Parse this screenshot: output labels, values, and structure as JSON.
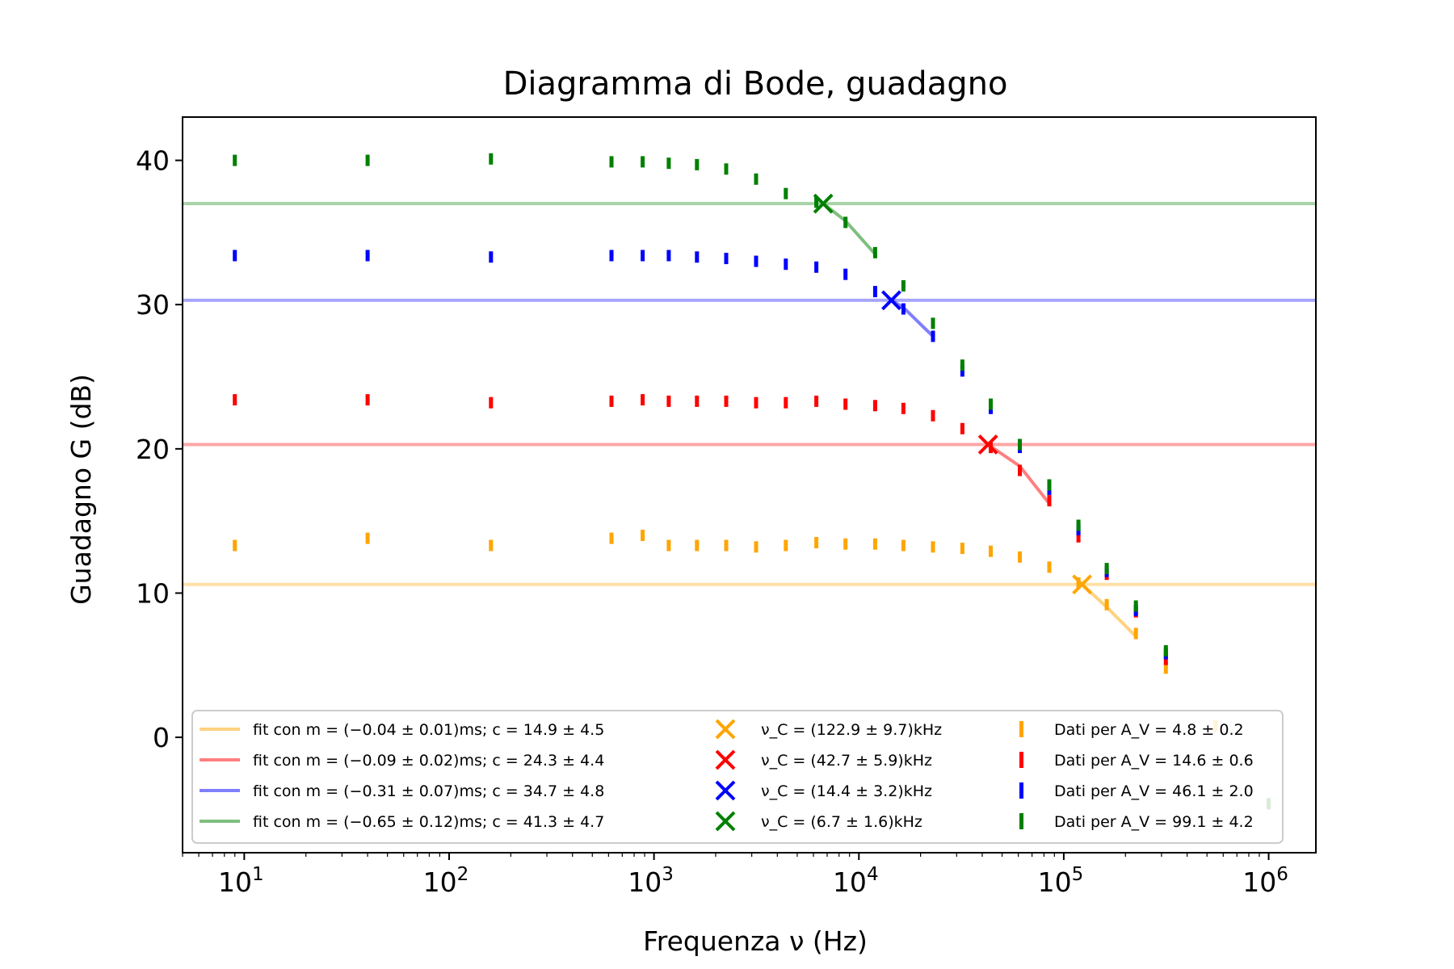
{
  "chart_data": {
    "type": "scatter",
    "title": "Diagramma di Bode, guadagno",
    "xlabel": "Frequenza ν (Hz)",
    "ylabel": "Guadagno G (dB)",
    "x_scale": "log",
    "xlim": [
      5,
      1700000
    ],
    "ylim": [
      -8,
      43
    ],
    "x_ticks": [
      {
        "value": 10,
        "base": "10",
        "exp": "1"
      },
      {
        "value": 100,
        "base": "10",
        "exp": "2"
      },
      {
        "value": 1000,
        "base": "10",
        "exp": "3"
      },
      {
        "value": 10000,
        "base": "10",
        "exp": "4"
      },
      {
        "value": 100000,
        "base": "10",
        "exp": "5"
      },
      {
        "value": 1000000,
        "base": "10",
        "exp": "6"
      }
    ],
    "y_ticks": [
      {
        "value": 0,
        "label": "0"
      },
      {
        "value": 10,
        "label": "10"
      },
      {
        "value": 20,
        "label": "20"
      },
      {
        "value": 30,
        "label": "30"
      },
      {
        "value": 40,
        "label": "40"
      }
    ],
    "grid": false,
    "legend_position": "bottom",
    "series": [
      {
        "name": "Dati per A_V = 4.8 ± 0.2",
        "color": "#ffa500",
        "hline": 10.6,
        "fit_name": "fit con m = (−0.04 ± 0.01)ms; c = 14.9 ± 4.5",
        "cutoff_name": "ν_C = (122.9 ± 9.7)kHz",
        "cutoff": {
          "x": 122900,
          "y": 10.6
        },
        "fit": [
          [
            122900,
            10.6
          ],
          [
            160000,
            9.1
          ],
          [
            225000,
            7.0
          ]
        ],
        "x": [
          9,
          40,
          160,
          620,
          880,
          1180,
          1620,
          2250,
          3150,
          4400,
          6200,
          8600,
          12000,
          16500,
          23000,
          32000,
          44000,
          61000,
          85000,
          118000,
          162000,
          225000,
          315000,
          550000
        ],
        "y": [
          13.3,
          13.8,
          13.3,
          13.8,
          14.0,
          13.3,
          13.3,
          13.3,
          13.2,
          13.3,
          13.5,
          13.4,
          13.4,
          13.3,
          13.2,
          13.1,
          12.9,
          12.5,
          11.8,
          10.7,
          9.2,
          7.2,
          4.8,
          0.8
        ]
      },
      {
        "name": "Dati per A_V = 14.6 ± 0.6",
        "color": "#ff0000",
        "hline": 20.3,
        "fit_name": "fit con m = (−0.09 ± 0.02)ms; c = 24.3 ± 4.4",
        "cutoff_name": "ν_C = (42.7 ± 5.9)kHz",
        "cutoff": {
          "x": 42700,
          "y": 20.3
        },
        "fit": [
          [
            42700,
            20.3
          ],
          [
            61000,
            18.8
          ],
          [
            85000,
            16.2
          ]
        ],
        "x": [
          9,
          40,
          160,
          620,
          880,
          1180,
          1620,
          2250,
          3150,
          4400,
          6200,
          8600,
          12000,
          16500,
          23000,
          32000,
          44000,
          61000,
          85000,
          118000,
          162000,
          225000,
          315000
        ],
        "y": [
          23.4,
          23.4,
          23.2,
          23.3,
          23.4,
          23.3,
          23.3,
          23.3,
          23.2,
          23.2,
          23.3,
          23.1,
          23.0,
          22.8,
          22.3,
          21.4,
          20.1,
          18.5,
          16.4,
          13.9,
          11.3,
          8.7,
          5.4
        ]
      },
      {
        "name": "Dati per A_V = 46.1 ± 2.0",
        "color": "#0000ff",
        "hline": 30.3,
        "fit_name": "fit con m = (−0.31 ± 0.07)ms; c = 34.7 ± 4.8",
        "cutoff_name": "ν_C = (14.4 ± 3.2)kHz",
        "cutoff": {
          "x": 14400,
          "y": 30.3
        },
        "fit": [
          [
            14400,
            30.3
          ],
          [
            16500,
            29.8
          ],
          [
            23000,
            27.8
          ]
        ],
        "x": [
          9,
          40,
          160,
          620,
          880,
          1180,
          1620,
          2250,
          3150,
          4400,
          6200,
          8600,
          12000,
          16500,
          23000,
          32000,
          44000,
          61000,
          85000,
          118000,
          162000,
          225000,
          315000
        ],
        "y": [
          33.4,
          33.4,
          33.3,
          33.4,
          33.4,
          33.4,
          33.3,
          33.2,
          33.0,
          32.8,
          32.6,
          32.1,
          30.9,
          29.7,
          27.8,
          25.4,
          22.8,
          20.1,
          17.2,
          14.4,
          11.5,
          8.8,
          5.8
        ]
      },
      {
        "name": "Dati per A_V = 99.1 ± 4.2",
        "color": "#008000",
        "hline": 37.0,
        "fit_name": "fit con m = (−0.65 ± 0.12)ms; c = 41.3 ± 4.7",
        "cutoff_name": "ν_C = (6.7 ± 1.6)kHz",
        "cutoff": {
          "x": 6700,
          "y": 37.0
        },
        "fit": [
          [
            6700,
            37.0
          ],
          [
            8600,
            35.8
          ],
          [
            12000,
            33.5
          ]
        ],
        "x": [
          9,
          40,
          160,
          620,
          880,
          1180,
          1620,
          2250,
          3150,
          4400,
          6200,
          8600,
          12000,
          16500,
          23000,
          32000,
          44000,
          61000,
          85000,
          118000,
          162000,
          225000,
          315000,
          1000000
        ],
        "y": [
          40.0,
          40.0,
          40.1,
          39.9,
          39.9,
          39.8,
          39.7,
          39.4,
          38.7,
          37.7,
          37.1,
          35.7,
          33.6,
          31.3,
          28.7,
          25.8,
          23.1,
          20.3,
          17.5,
          14.7,
          11.7,
          9.1,
          6.0,
          -4.6
        ]
      }
    ]
  }
}
